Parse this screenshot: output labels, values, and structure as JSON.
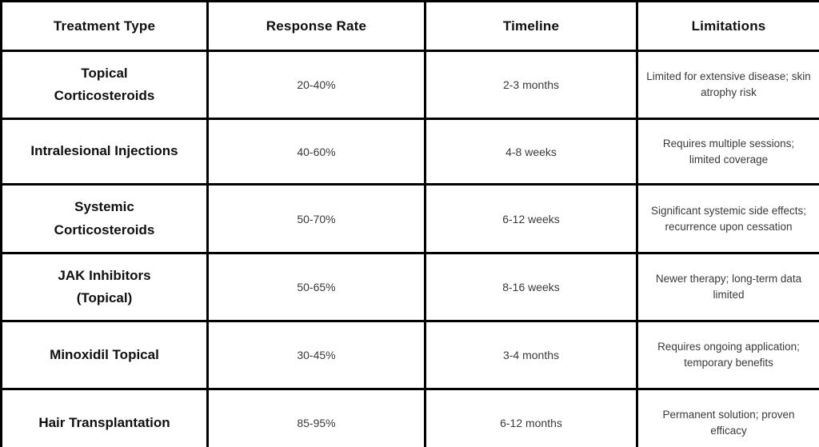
{
  "chart_data": {
    "type": "table",
    "columns": [
      "Treatment Type",
      "Response Rate",
      "Timeline",
      "Limitations"
    ],
    "rows": [
      [
        "Topical Corticosteroids",
        "20-40%",
        "2-3 months",
        "Limited for extensive disease; skin atrophy risk"
      ],
      [
        "Intralesional Injections",
        "40-60%",
        "4-8 weeks",
        "Requires multiple sessions; limited coverage"
      ],
      [
        "Systemic Corticosteroids",
        "50-70%",
        "6-12 weeks",
        "Significant systemic side effects; recurrence upon cessation"
      ],
      [
        "JAK Inhibitors (Topical)",
        "50-65%",
        "8-16 weeks",
        "Newer therapy; long-term data limited"
      ],
      [
        "Minoxidil Topical",
        "30-45%",
        "3-4 months",
        "Requires ongoing application; temporary benefits"
      ],
      [
        "Hair Transplantation",
        "85-95%",
        "6-12 months",
        "Permanent solution; proven efficacy"
      ]
    ],
    "layout": {
      "grid": "full black borders",
      "header_row": true,
      "last_row_clipped": true
    }
  },
  "colors": {
    "background": "#ffffff",
    "border": "#000000",
    "header_text": "#101010",
    "body_text": "#3a3a3a"
  }
}
